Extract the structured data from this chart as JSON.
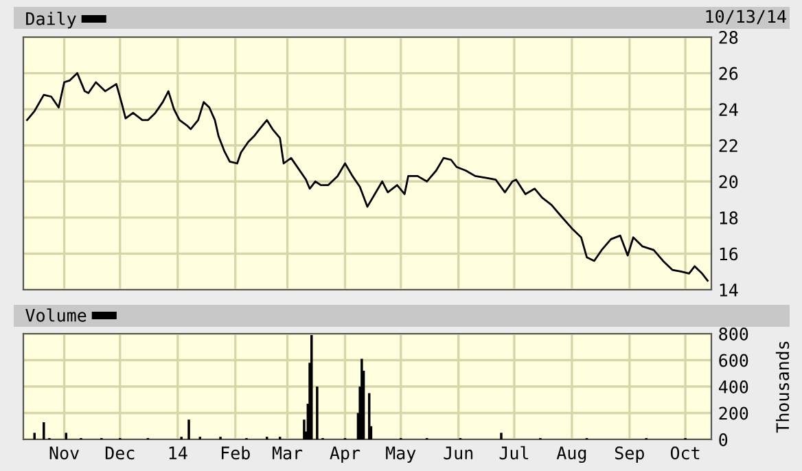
{
  "chart_data": [
    {
      "type": "line",
      "annotations": [
        "10/13/14"
      ],
      "x": [
        "2013-10-12",
        "2013-10-16",
        "2013-10-21",
        "2013-10-25",
        "2013-10-29",
        "2013-11-01",
        "2013-11-04",
        "2013-11-08",
        "2013-11-12",
        "2013-11-14",
        "2013-11-18",
        "2013-11-23",
        "2013-11-29",
        "2013-12-02",
        "2013-12-04",
        "2013-12-08",
        "2013-12-13",
        "2013-12-16",
        "2013-12-20",
        "2013-12-24",
        "2013-12-27",
        "2013-12-30",
        "2014-01-02",
        "2014-01-06",
        "2014-01-08",
        "2014-01-12",
        "2014-01-15",
        "2014-01-18",
        "2014-01-21",
        "2014-01-23",
        "2014-01-26",
        "2014-01-29",
        "2014-02-02",
        "2014-02-04",
        "2014-02-08",
        "2014-02-11",
        "2014-02-14",
        "2014-02-18",
        "2014-02-21",
        "2014-02-25",
        "2014-02-27",
        "2014-03-03",
        "2014-03-07",
        "2014-03-11",
        "2014-03-13",
        "2014-03-16",
        "2014-03-19",
        "2014-03-23",
        "2014-03-28",
        "2014-04-01",
        "2014-04-05",
        "2014-04-09",
        "2014-04-13",
        "2014-04-17",
        "2014-04-21",
        "2014-04-24",
        "2014-04-29",
        "2014-05-03",
        "2014-05-05",
        "2014-05-07",
        "2014-05-10",
        "2014-05-15",
        "2014-05-20",
        "2014-05-24",
        "2014-05-28",
        "2014-05-31",
        "2014-06-05",
        "2014-06-10",
        "2014-06-16",
        "2014-06-21",
        "2014-06-26",
        "2014-06-30",
        "2014-07-02",
        "2014-07-07",
        "2014-07-12",
        "2014-07-16",
        "2014-07-21",
        "2014-07-26",
        "2014-08-01",
        "2014-08-06",
        "2014-08-09",
        "2014-08-13",
        "2014-08-17",
        "2014-08-22",
        "2014-08-27",
        "2014-08-31",
        "2014-09-03",
        "2014-09-08",
        "2014-09-14",
        "2014-09-19",
        "2014-09-24",
        "2014-09-29",
        "2014-10-03",
        "2014-10-06",
        "2014-10-10",
        "2014-10-13"
      ],
      "series": [
        {
          "name": "Daily",
          "color": "#000000",
          "values": [
            23.4,
            23.9,
            24.8,
            24.7,
            24.1,
            25.5,
            25.6,
            26.0,
            25.0,
            24.9,
            25.5,
            25.0,
            25.4,
            24.3,
            23.5,
            23.8,
            23.4,
            23.4,
            23.8,
            24.4,
            25.0,
            24.0,
            23.4,
            23.1,
            22.9,
            23.4,
            24.4,
            24.1,
            23.4,
            22.5,
            21.7,
            21.1,
            21.0,
            21.6,
            22.2,
            22.5,
            22.9,
            23.4,
            22.9,
            22.4,
            21.0,
            21.3,
            20.7,
            20.1,
            19.6,
            20.0,
            19.8,
            19.8,
            20.3,
            21.0,
            20.3,
            19.7,
            18.6,
            19.3,
            20.0,
            19.4,
            19.8,
            19.3,
            20.3,
            20.3,
            20.3,
            20.0,
            20.6,
            21.3,
            21.2,
            20.8,
            20.6,
            20.3,
            20.2,
            20.1,
            19.4,
            20.0,
            20.1,
            19.3,
            19.6,
            19.1,
            18.7,
            18.1,
            17.4,
            16.9,
            15.8,
            15.6,
            16.2,
            16.8,
            17.0,
            15.9,
            16.9,
            16.4,
            16.2,
            15.6,
            15.1,
            15.0,
            14.9,
            15.3,
            14.9,
            14.5
          ]
        }
      ],
      "xlim": [
        "2013-10-10",
        "2014-10-15"
      ],
      "xticks": [
        {
          "value": "2013-11-01",
          "label": null
        },
        {
          "value": "2013-12-01",
          "label": null
        },
        {
          "value": "2014-01-01",
          "label": null
        },
        {
          "value": "2014-02-01",
          "label": null
        },
        {
          "value": "2014-03-01",
          "label": null
        },
        {
          "value": "2014-04-01",
          "label": null
        },
        {
          "value": "2014-05-01",
          "label": null
        },
        {
          "value": "2014-06-01",
          "label": null
        },
        {
          "value": "2014-07-01",
          "label": null
        },
        {
          "value": "2014-08-01",
          "label": null
        },
        {
          "value": "2014-09-01",
          "label": null
        },
        {
          "value": "2014-10-01",
          "label": null
        }
      ],
      "ylim": [
        14,
        28
      ],
      "yticks": [
        14,
        16,
        18,
        20,
        22,
        24,
        26,
        28
      ],
      "tick_labels": "y",
      "grid": true,
      "legend": "top left"
    },
    {
      "type": "bar",
      "ylabel": "Thousands",
      "x": [
        "2013-10-16",
        "2013-10-21",
        "2013-10-24",
        "2013-11-02",
        "2013-11-10",
        "2013-11-21",
        "2013-12-01",
        "2013-12-16",
        "2014-01-03",
        "2014-01-07",
        "2014-01-13",
        "2014-01-24",
        "2014-02-07",
        "2014-02-18",
        "2014-02-25",
        "2014-03-10",
        "2014-03-11",
        "2014-03-12",
        "2014-03-13",
        "2014-03-14",
        "2014-03-17",
        "2014-03-20",
        "2014-04-01",
        "2014-04-08",
        "2014-04-09",
        "2014-04-10",
        "2014-04-11",
        "2014-04-14",
        "2014-04-15",
        "2014-05-01",
        "2014-05-15",
        "2014-06-02",
        "2014-06-24",
        "2014-07-15",
        "2014-08-09",
        "2014-09-10",
        "2014-10-01"
      ],
      "series": [
        {
          "name": "Volume",
          "color": "#000000",
          "values": [
            50,
            130,
            10,
            50,
            10,
            10,
            10,
            10,
            20,
            150,
            20,
            20,
            10,
            20,
            20,
            150,
            60,
            270,
            580,
            790,
            400,
            10,
            10,
            200,
            400,
            610,
            520,
            350,
            100,
            10,
            10,
            10,
            50,
            10,
            10,
            10,
            10
          ]
        }
      ],
      "xlim": [
        "2013-10-10",
        "2014-10-15"
      ],
      "xticks": [
        {
          "value": "2013-11-01",
          "label": "Nov"
        },
        {
          "value": "2013-12-01",
          "label": "Dec"
        },
        {
          "value": "2014-01-01",
          "label": "14"
        },
        {
          "value": "2014-02-01",
          "label": "Feb"
        },
        {
          "value": "2014-03-01",
          "label": "Mar"
        },
        {
          "value": "2014-04-01",
          "label": "Apr"
        },
        {
          "value": "2014-05-01",
          "label": "May"
        },
        {
          "value": "2014-06-01",
          "label": "Jun"
        },
        {
          "value": "2014-07-01",
          "label": "Jul"
        },
        {
          "value": "2014-08-01",
          "label": "Aug"
        },
        {
          "value": "2014-09-01",
          "label": "Sep"
        },
        {
          "value": "2014-10-01",
          "label": "Oct"
        }
      ],
      "ylim": [
        0,
        800
      ],
      "yticks": [
        0,
        200,
        400,
        600,
        800
      ],
      "grid": true,
      "legend": "top left"
    }
  ]
}
